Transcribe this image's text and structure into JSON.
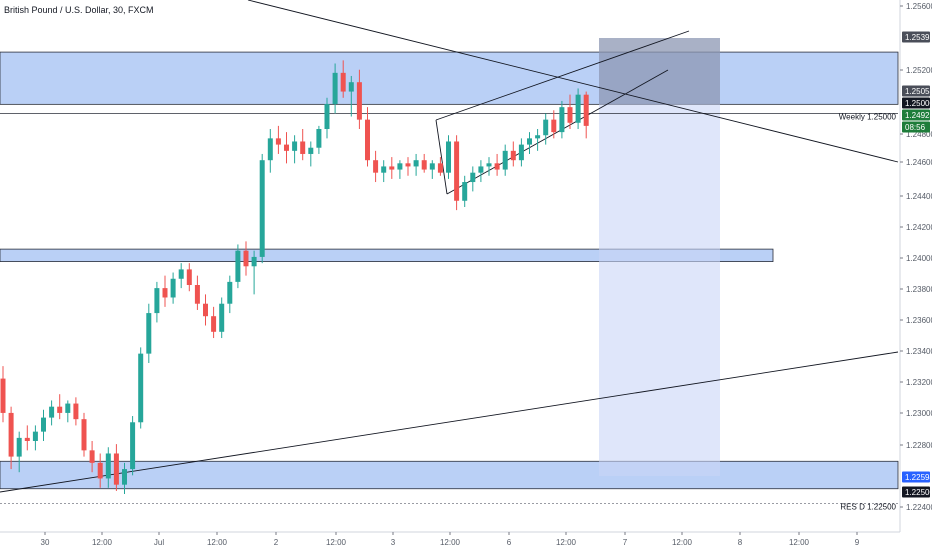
{
  "chart_data": {
    "type": "candlestick",
    "title": "British Pound / U.S. Dollar, 30, FXCM",
    "y_axis": {
      "ylim": [
        1.2232,
        1.2565
      ],
      "ticks": [
        "1.25600",
        "1.25200",
        "1.24800",
        "1.24600",
        "1.24400",
        "1.24200",
        "1.24000",
        "1.23800",
        "1.23600",
        "1.23400",
        "1.23200",
        "1.23000",
        "1.22800",
        "1.22400"
      ],
      "price_labels": [
        {
          "text": "1.25393",
          "value": 1.25393,
          "bg": "#4a4e59",
          "fg": "#ffffff"
        },
        {
          "text": "1.25058",
          "value": 1.25058,
          "bg": "#4a4e59",
          "fg": "#ffffff"
        },
        {
          "text": "1.25000",
          "value": 1.25,
          "bg": "#131722",
          "fg": "#ffffff"
        },
        {
          "text": "1.24923",
          "value": 1.24923,
          "bg": "#1e7d3a",
          "fg": "#ffffff"
        },
        {
          "text": "08:56",
          "value": 1.2483,
          "bg": "#1e7d3a",
          "fg": "#ffffff"
        },
        {
          "text": "1.22594",
          "value": 1.22594,
          "bg": "#2962ff",
          "fg": "#ffffff"
        },
        {
          "text": "1.22500",
          "value": 1.225,
          "bg": "#131722",
          "fg": "#ffffff"
        }
      ]
    },
    "x_axis": {
      "ticks": [
        "30",
        "12:00",
        "Jul",
        "12:00",
        "2",
        "12:00",
        "3",
        "12:00",
        "6",
        "12:00",
        "7",
        "12:00",
        "8",
        "12:00",
        "9"
      ]
    },
    "annotations": {
      "weekly_label": "Weekly 1.25000",
      "res_label": "RES D 1.22500",
      "weekly_level": 1.25,
      "res_level": 1.225
    },
    "zones": [
      {
        "name": "resistance-zone",
        "top": 1.25393,
        "bottom": 1.25058
      },
      {
        "name": "middle-zone",
        "top": 1.2413,
        "bottom": 1.2405
      },
      {
        "name": "support-zone",
        "top": 1.2277,
        "bottom": 1.22594
      }
    ],
    "series": [
      {
        "values": [
          [
            1.233,
            1.2338,
            1.2302,
            1.2308
          ],
          [
            1.2308,
            1.2312,
            1.2272,
            1.228
          ],
          [
            1.228,
            1.2296,
            1.227,
            1.2292
          ],
          [
            1.2292,
            1.23,
            1.2284,
            1.229
          ],
          [
            1.229,
            1.23,
            1.2284,
            1.2296
          ],
          [
            1.2296,
            1.231,
            1.229,
            1.2305
          ],
          [
            1.2305,
            1.2316,
            1.23,
            1.2312
          ],
          [
            1.2312,
            1.232,
            1.2304,
            1.2308
          ],
          [
            1.2308,
            1.2316,
            1.2302,
            1.2314
          ],
          [
            1.2314,
            1.2318,
            1.23,
            1.2304
          ],
          [
            1.2304,
            1.2308,
            1.228,
            1.2284
          ],
          [
            1.2284,
            1.229,
            1.227,
            1.2276
          ],
          [
            1.2276,
            1.2282,
            1.226,
            1.2266
          ],
          [
            1.2266,
            1.2286,
            1.226,
            1.2282
          ],
          [
            1.2282,
            1.2288,
            1.2258,
            1.2262
          ],
          [
            1.2262,
            1.2276,
            1.2256,
            1.2272
          ],
          [
            1.2272,
            1.2306,
            1.2268,
            1.2302
          ],
          [
            1.2302,
            1.235,
            1.2298,
            1.2346
          ],
          [
            1.2346,
            1.2378,
            1.234,
            1.2372
          ],
          [
            1.2372,
            1.2392,
            1.2366,
            1.2388
          ],
          [
            1.2388,
            1.2396,
            1.2376,
            1.2382
          ],
          [
            1.2382,
            1.2398,
            1.2378,
            1.2394
          ],
          [
            1.2394,
            1.2404,
            1.2388,
            1.24
          ],
          [
            1.24,
            1.2404,
            1.2386,
            1.239
          ],
          [
            1.239,
            1.2396,
            1.2374,
            1.2378
          ],
          [
            1.2378,
            1.2384,
            1.2364,
            1.237
          ],
          [
            1.237,
            1.2376,
            1.2356,
            1.236
          ],
          [
            1.236,
            1.2382,
            1.2356,
            1.2378
          ],
          [
            1.2378,
            1.2396,
            1.2372,
            1.2392
          ],
          [
            1.2392,
            1.2416,
            1.2388,
            1.2412
          ],
          [
            1.2412,
            1.2418,
            1.2396,
            1.2402
          ],
          [
            1.2402,
            1.2412,
            1.2384,
            1.2408
          ],
          [
            1.2408,
            1.2474,
            1.2404,
            1.247
          ],
          [
            1.247,
            1.249,
            1.2462,
            1.2484
          ],
          [
            1.2484,
            1.2492,
            1.2474,
            1.248
          ],
          [
            1.248,
            1.2488,
            1.2468,
            1.2476
          ],
          [
            1.2476,
            1.2486,
            1.2468,
            1.2482
          ],
          [
            1.2482,
            1.249,
            1.247,
            1.2474
          ],
          [
            1.2474,
            1.2482,
            1.2466,
            1.2478
          ],
          [
            1.2478,
            1.2492,
            1.2474,
            1.249
          ],
          [
            1.249,
            1.251,
            1.2484,
            1.2506
          ],
          [
            1.2506,
            1.2532,
            1.25,
            1.2526
          ],
          [
            1.2526,
            1.2534,
            1.251,
            1.2514
          ],
          [
            1.2514,
            1.2524,
            1.2498,
            1.252
          ],
          [
            1.252,
            1.2528,
            1.249,
            1.2496
          ],
          [
            1.2496,
            1.2504,
            1.2466,
            1.247
          ],
          [
            1.247,
            1.2476,
            1.2456,
            1.2462
          ],
          [
            1.2462,
            1.247,
            1.2456,
            1.2466
          ],
          [
            1.2466,
            1.2472,
            1.2458,
            1.2464
          ],
          [
            1.2464,
            1.247,
            1.2458,
            1.2468
          ],
          [
            1.2468,
            1.2472,
            1.246,
            1.2466
          ],
          [
            1.2466,
            1.2474,
            1.246,
            1.247
          ],
          [
            1.247,
            1.2474,
            1.2462,
            1.2464
          ],
          [
            1.2464,
            1.247,
            1.2458,
            1.2468
          ],
          [
            1.2468,
            1.2472,
            1.246,
            1.2462
          ],
          [
            1.2462,
            1.2486,
            1.2458,
            1.2482
          ],
          [
            1.2482,
            1.2486,
            1.2438,
            1.2444
          ],
          [
            1.2444,
            1.246,
            1.244,
            1.2456
          ],
          [
            1.2456,
            1.2466,
            1.245,
            1.2462
          ],
          [
            1.2462,
            1.247,
            1.2456,
            1.2466
          ],
          [
            1.2466,
            1.2472,
            1.246,
            1.2468
          ],
          [
            1.2468,
            1.2474,
            1.246,
            1.2464
          ],
          [
            1.2464,
            1.248,
            1.246,
            1.2476
          ],
          [
            1.2476,
            1.2482,
            1.2466,
            1.247
          ],
          [
            1.247,
            1.2484,
            1.2466,
            1.248
          ],
          [
            1.248,
            1.2488,
            1.2474,
            1.2484
          ],
          [
            1.2484,
            1.249,
            1.2476,
            1.2486
          ],
          [
            1.2486,
            1.25,
            1.248,
            1.2496
          ],
          [
            1.2496,
            1.2502,
            1.2484,
            1.2488
          ],
          [
            1.2488,
            1.2508,
            1.2484,
            1.2504
          ],
          [
            1.2504,
            1.2512,
            1.249,
            1.2494
          ],
          [
            1.2494,
            1.2516,
            1.249,
            1.2512
          ],
          [
            1.2512,
            1.2514,
            1.2484,
            1.2492
          ]
        ]
      }
    ]
  }
}
